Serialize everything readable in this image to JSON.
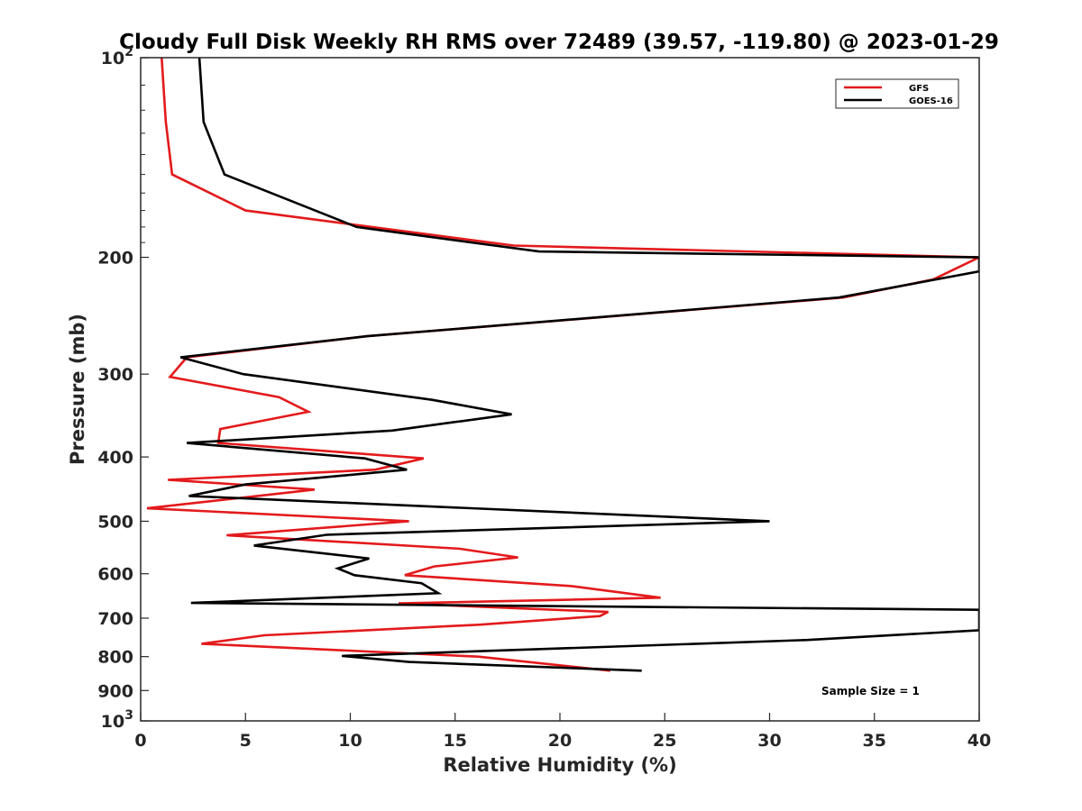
{
  "chart_data": {
    "type": "line",
    "title": "Cloudy Full Disk Weekly RH RMS over 72489 (39.57, -119.80) @ 2023-01-29",
    "xlabel": "Relative Humidity (%)",
    "ylabel": "Pressure (mb)",
    "xlim": [
      0,
      40
    ],
    "ylim": [
      100,
      1000
    ],
    "y_scale": "log",
    "y_reversed": true,
    "grid": false,
    "legend_position": "top-right",
    "note": "Sample Size = 1",
    "x_ticks": [
      "0",
      "5",
      "10",
      "15",
      "20",
      "25",
      "30",
      "35",
      "40"
    ],
    "y_ticks": [
      {
        "value": 100,
        "base": "10",
        "exp": "2"
      },
      {
        "value": 200,
        "label": "200"
      },
      {
        "value": 300,
        "label": "300"
      },
      {
        "value": 400,
        "label": "400"
      },
      {
        "value": 500,
        "label": "500"
      },
      {
        "value": 600,
        "label": "600"
      },
      {
        "value": 700,
        "label": "700"
      },
      {
        "value": 800,
        "label": "800"
      },
      {
        "value": 900,
        "label": "900"
      },
      {
        "value": 1000,
        "base": "10",
        "exp": "3"
      }
    ],
    "series": [
      {
        "name": "GFS",
        "color": "#e31a1c",
        "points": [
          [
            1.0,
            100
          ],
          [
            1.2,
            125
          ],
          [
            1.5,
            150
          ],
          [
            5.0,
            170
          ],
          [
            17.8,
            192
          ],
          [
            40.0,
            200
          ],
          [
            37.8,
            216
          ],
          [
            33.5,
            230
          ],
          [
            10.8,
            263
          ],
          [
            2.2,
            283
          ],
          [
            1.4,
            303
          ],
          [
            6.6,
            325
          ],
          [
            8.0,
            342
          ],
          [
            3.8,
            363
          ],
          [
            3.7,
            381
          ],
          [
            13.5,
            402
          ],
          [
            11.2,
            418
          ],
          [
            1.3,
            433
          ],
          [
            8.3,
            448
          ],
          [
            0.3,
            478
          ],
          [
            12.8,
            500
          ],
          [
            4.1,
            525
          ],
          [
            15.2,
            550
          ],
          [
            18.0,
            567
          ],
          [
            14.0,
            585
          ],
          [
            12.6,
            603
          ],
          [
            20.5,
            626
          ],
          [
            24.8,
            652
          ],
          [
            12.3,
            665
          ],
          [
            22.3,
            685
          ],
          [
            21.9,
            695
          ],
          [
            16.2,
            716
          ],
          [
            5.9,
            743
          ],
          [
            2.9,
            765
          ],
          [
            16.1,
            800
          ],
          [
            22.4,
            840
          ]
        ]
      },
      {
        "name": "GOES-16",
        "color": "#000000",
        "points": [
          [
            2.8,
            100
          ],
          [
            3.0,
            125
          ],
          [
            4.0,
            150
          ],
          [
            10.3,
            180
          ],
          [
            19.0,
            196
          ],
          [
            40.0,
            200
          ],
          [
            40.0,
            210
          ],
          [
            33.3,
            230
          ],
          [
            10.8,
            263
          ],
          [
            1.9,
            283
          ],
          [
            4.9,
            300
          ],
          [
            13.9,
            328
          ],
          [
            17.7,
            345
          ],
          [
            12.0,
            365
          ],
          [
            2.2,
            381
          ],
          [
            10.7,
            402
          ],
          [
            12.7,
            418
          ],
          [
            5.0,
            440
          ],
          [
            2.3,
            458
          ],
          [
            30.0,
            500
          ],
          [
            8.9,
            524
          ],
          [
            5.4,
            544
          ],
          [
            10.9,
            569
          ],
          [
            9.4,
            589
          ],
          [
            10.2,
            603
          ],
          [
            13.4,
            620
          ],
          [
            14.2,
            642
          ],
          [
            2.4,
            664
          ],
          [
            40.0,
            680
          ],
          [
            40.0,
            730
          ],
          [
            31.8,
            755
          ],
          [
            9.6,
            798
          ],
          [
            12.8,
            815
          ],
          [
            23.9,
            840
          ]
        ]
      }
    ]
  }
}
